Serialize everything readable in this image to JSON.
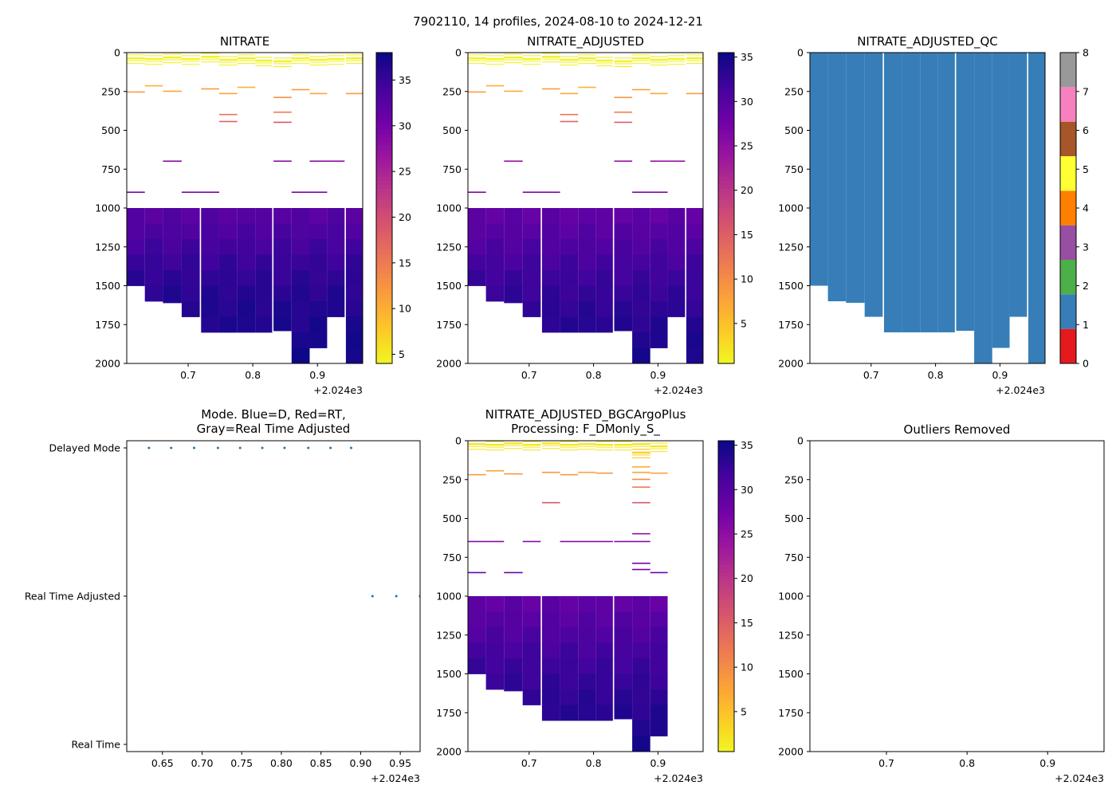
{
  "figure_title": "7902110, 14 profiles, 2024-08-10 to 2024-12-21",
  "colors": {
    "bin_blue": "#377eb8",
    "mode_dot": "#1f77b4",
    "plasma": [
      "#f0f921",
      "#fdca26",
      "#fb9f3a",
      "#ed7953",
      "#d8576b",
      "#bd3786",
      "#9c179e",
      "#7201a8",
      "#46039f",
      "#0d0887"
    ],
    "qc_classes": [
      "#e41a1c",
      "#377eb8",
      "#4daf4a",
      "#984ea3",
      "#ff7f00",
      "#ffff33",
      "#a65628",
      "#f781bf",
      "#999999"
    ]
  },
  "chart_data": [
    {
      "id": "nitrate",
      "type": "heatmap",
      "title": "NITRATE",
      "x_offset_label": "+2.024e3",
      "xlim": [
        0.605,
        0.97
      ],
      "ylim": [
        2000,
        0
      ],
      "xticks": [
        "0.7",
        "0.8",
        "0.9"
      ],
      "yticks": [
        "0",
        "250",
        "500",
        "750",
        "1000",
        "1250",
        "1500",
        "1750",
        "2000"
      ],
      "colorbar": {
        "range": [
          4,
          38
        ],
        "ticks": [
          "5",
          "10",
          "15",
          "20",
          "25",
          "30",
          "35"
        ]
      },
      "profiles": [
        {
          "x0": 0.605,
          "x1": 0.633,
          "max_depth": 1500
        },
        {
          "x0": 0.633,
          "x1": 0.661,
          "max_depth": 1600
        },
        {
          "x0": 0.661,
          "x1": 0.69,
          "max_depth": 1610
        },
        {
          "x0": 0.69,
          "x1": 0.718,
          "max_depth": 1700
        },
        {
          "x0": 0.72,
          "x1": 0.748,
          "max_depth": 1800
        },
        {
          "x0": 0.748,
          "x1": 0.776,
          "max_depth": 1800
        },
        {
          "x0": 0.776,
          "x1": 0.804,
          "max_depth": 1800
        },
        {
          "x0": 0.804,
          "x1": 0.83,
          "max_depth": 1800
        },
        {
          "x0": 0.832,
          "x1": 0.86,
          "max_depth": 1790
        },
        {
          "x0": 0.86,
          "x1": 0.888,
          "max_depth": 2000
        },
        {
          "x0": 0.888,
          "x1": 0.915,
          "max_depth": 1900
        },
        {
          "x0": 0.915,
          "x1": 0.942,
          "max_depth": 1700
        },
        {
          "x0": 0.944,
          "x1": 0.97,
          "max_depth": 2000
        }
      ],
      "deep_values": {
        "depths": [
          1000,
          1200,
          1400,
          1600,
          1800,
          2000
        ],
        "values": [
          32.5,
          34,
          35.5,
          36.5,
          37,
          37.5
        ]
      },
      "shallow_segments": [
        {
          "x0": 0.605,
          "x1": 0.633,
          "d": 40,
          "v": 4.5
        },
        {
          "x0": 0.633,
          "x1": 0.661,
          "d": 45,
          "v": 4.5
        },
        {
          "x0": 0.661,
          "x1": 0.69,
          "d": 35,
          "v": 4.8
        },
        {
          "x0": 0.69,
          "x1": 0.718,
          "d": 45,
          "v": 4.5
        },
        {
          "x0": 0.72,
          "x1": 0.748,
          "d": 30,
          "v": 4.6
        },
        {
          "x0": 0.748,
          "x1": 0.776,
          "d": 50,
          "v": 4.5
        },
        {
          "x0": 0.776,
          "x1": 0.804,
          "d": 40,
          "v": 4.7
        },
        {
          "x0": 0.804,
          "x1": 0.83,
          "d": 55,
          "v": 4.6
        },
        {
          "x0": 0.832,
          "x1": 0.86,
          "d": 60,
          "v": 4.8
        },
        {
          "x0": 0.86,
          "x1": 0.888,
          "d": 40,
          "v": 4.5
        },
        {
          "x0": 0.888,
          "x1": 0.915,
          "d": 50,
          "v": 4.6
        },
        {
          "x0": 0.915,
          "x1": 0.942,
          "d": 45,
          "v": 4.5
        },
        {
          "x0": 0.944,
          "x1": 0.97,
          "d": 40,
          "v": 4.6
        },
        {
          "x0": 0.605,
          "x1": 0.633,
          "d": 255,
          "v": 12
        },
        {
          "x0": 0.661,
          "x1": 0.69,
          "d": 250,
          "v": 11
        },
        {
          "x0": 0.72,
          "x1": 0.748,
          "d": 235,
          "v": 12
        },
        {
          "x0": 0.748,
          "x1": 0.776,
          "d": 265,
          "v": 11
        },
        {
          "x0": 0.776,
          "x1": 0.804,
          "d": 225,
          "v": 10
        },
        {
          "x0": 0.832,
          "x1": 0.86,
          "d": 290,
          "v": 13
        },
        {
          "x0": 0.86,
          "x1": 0.888,
          "d": 240,
          "v": 12
        },
        {
          "x0": 0.888,
          "x1": 0.915,
          "d": 265,
          "v": 11
        },
        {
          "x0": 0.944,
          "x1": 0.97,
          "d": 265,
          "v": 12
        },
        {
          "x0": 0.633,
          "x1": 0.661,
          "d": 215,
          "v": 10
        },
        {
          "x0": 0.832,
          "x1": 0.86,
          "d": 385,
          "v": 15
        },
        {
          "x0": 0.748,
          "x1": 0.776,
          "d": 400,
          "v": 16
        },
        {
          "x0": 0.748,
          "x1": 0.776,
          "d": 445,
          "v": 18
        },
        {
          "x0": 0.832,
          "x1": 0.86,
          "d": 450,
          "v": 19
        },
        {
          "x0": 0.661,
          "x1": 0.69,
          "d": 700,
          "v": 28
        },
        {
          "x0": 0.832,
          "x1": 0.86,
          "d": 700,
          "v": 28
        },
        {
          "x0": 0.888,
          "x1": 0.942,
          "d": 700,
          "v": 28
        },
        {
          "x0": 0.605,
          "x1": 0.633,
          "d": 900,
          "v": 30
        },
        {
          "x0": 0.69,
          "x1": 0.748,
          "d": 900,
          "v": 30
        },
        {
          "x0": 0.86,
          "x1": 0.915,
          "d": 900,
          "v": 30
        }
      ]
    },
    {
      "id": "nitrate_adjusted",
      "type": "heatmap",
      "title": "NITRATE_ADJUSTED",
      "x_offset_label": "+2.024e3",
      "xlim": [
        0.605,
        0.97
      ],
      "ylim": [
        2000,
        0
      ],
      "xticks": [
        "0.7",
        "0.8",
        "0.9"
      ],
      "yticks": [
        "0",
        "250",
        "500",
        "750",
        "1000",
        "1250",
        "1500",
        "1750",
        "2000"
      ],
      "colorbar": {
        "range": [
          0.5,
          35.5
        ],
        "ticks": [
          "5",
          "10",
          "15",
          "20",
          "25",
          "30",
          "35"
        ]
      },
      "same_profiles_as": "nitrate",
      "deep_values": {
        "depths": [
          1000,
          1200,
          1400,
          1600,
          1800,
          2000
        ],
        "values": [
          29,
          30.5,
          32,
          33,
          34,
          34.5
        ]
      }
    },
    {
      "id": "nitrate_adjusted_qc",
      "type": "heatmap",
      "title": "NITRATE_ADJUSTED_QC",
      "x_offset_label": "+2.024e3",
      "xlim": [
        0.605,
        0.97
      ],
      "ylim": [
        2000,
        0
      ],
      "xticks": [
        "0.7",
        "0.8",
        "0.9"
      ],
      "yticks": [
        "0",
        "250",
        "500",
        "750",
        "1000",
        "1250",
        "1500",
        "1750",
        "2000"
      ],
      "colorbar": {
        "range": [
          0,
          8
        ],
        "ticks": [
          "0",
          "1",
          "2",
          "3",
          "4",
          "5",
          "6",
          "7",
          "8"
        ]
      },
      "qc_value": 1
    },
    {
      "id": "mode",
      "type": "scatter",
      "title_lines": [
        "Mode. Blue=D, Red=RT,",
        "Gray=Real Time Adjusted"
      ],
      "x_offset_label": "+2.024e3",
      "xlim": [
        0.605,
        0.975
      ],
      "xticks": [
        "0.65",
        "0.70",
        "0.75",
        "0.80",
        "0.85",
        "0.90",
        "0.95"
      ],
      "yticks": [
        "Delayed Mode",
        "Real Time Adjusted",
        "Real Time"
      ],
      "points": [
        {
          "x": 0.633,
          "mode": 2
        },
        {
          "x": 0.661,
          "mode": 2
        },
        {
          "x": 0.69,
          "mode": 2
        },
        {
          "x": 0.72,
          "mode": 2
        },
        {
          "x": 0.748,
          "mode": 2
        },
        {
          "x": 0.776,
          "mode": 2
        },
        {
          "x": 0.804,
          "mode": 2
        },
        {
          "x": 0.834,
          "mode": 2
        },
        {
          "x": 0.862,
          "mode": 2
        },
        {
          "x": 0.888,
          "mode": 2
        },
        {
          "x": 0.915,
          "mode": 1
        },
        {
          "x": 0.945,
          "mode": 1
        },
        {
          "x": 0.975,
          "mode": 1
        }
      ]
    },
    {
      "id": "bgcargoplus",
      "type": "heatmap",
      "title_lines": [
        "NITRATE_ADJUSTED_BGCArgoPlus",
        "Processing: F_DMonly_S_"
      ],
      "x_offset_label": "+2.024e3",
      "xlim": [
        0.605,
        0.97
      ],
      "ylim": [
        2000,
        0
      ],
      "xticks": [
        "0.7",
        "0.8",
        "0.9"
      ],
      "yticks": [
        "0",
        "250",
        "500",
        "750",
        "1000",
        "1250",
        "1500",
        "1750",
        "2000"
      ],
      "colorbar": {
        "range": [
          0.5,
          35.5
        ],
        "ticks": [
          "5",
          "10",
          "15",
          "20",
          "25",
          "30",
          "35"
        ]
      },
      "profiles": [
        {
          "x0": 0.605,
          "x1": 0.633,
          "max_depth": 1500
        },
        {
          "x0": 0.633,
          "x1": 0.661,
          "max_depth": 1600
        },
        {
          "x0": 0.661,
          "x1": 0.69,
          "max_depth": 1610
        },
        {
          "x0": 0.69,
          "x1": 0.718,
          "max_depth": 1700
        },
        {
          "x0": 0.72,
          "x1": 0.748,
          "max_depth": 1800
        },
        {
          "x0": 0.748,
          "x1": 0.776,
          "max_depth": 1800
        },
        {
          "x0": 0.776,
          "x1": 0.804,
          "max_depth": 1800
        },
        {
          "x0": 0.804,
          "x1": 0.83,
          "max_depth": 1800
        },
        {
          "x0": 0.832,
          "x1": 0.86,
          "max_depth": 1790
        },
        {
          "x0": 0.86,
          "x1": 0.888,
          "max_depth": 2000
        },
        {
          "x0": 0.888,
          "x1": 0.915,
          "max_depth": 1900
        }
      ],
      "deep_values": {
        "depths": [
          1000,
          1200,
          1400,
          1600,
          1800,
          2000
        ],
        "values": [
          29,
          30.5,
          32,
          33,
          34,
          34.5
        ]
      },
      "shallow_segments": [
        {
          "x0": 0.605,
          "x1": 0.633,
          "d": 25,
          "v": 2
        },
        {
          "x0": 0.633,
          "x1": 0.661,
          "d": 30,
          "v": 2
        },
        {
          "x0": 0.661,
          "x1": 0.69,
          "d": 20,
          "v": 2
        },
        {
          "x0": 0.69,
          "x1": 0.718,
          "d": 30,
          "v": 2
        },
        {
          "x0": 0.72,
          "x1": 0.748,
          "d": 20,
          "v": 2
        },
        {
          "x0": 0.748,
          "x1": 0.776,
          "d": 30,
          "v": 2
        },
        {
          "x0": 0.776,
          "x1": 0.804,
          "d": 25,
          "v": 2
        },
        {
          "x0": 0.804,
          "x1": 0.83,
          "d": 30,
          "v": 2
        },
        {
          "x0": 0.832,
          "x1": 0.86,
          "d": 30,
          "v": 2
        },
        {
          "x0": 0.86,
          "x1": 0.888,
          "d": 25,
          "v": 2
        },
        {
          "x0": 0.888,
          "x1": 0.915,
          "d": 40,
          "v": 2
        },
        {
          "x0": 0.605,
          "x1": 0.633,
          "d": 220,
          "v": 9
        },
        {
          "x0": 0.633,
          "x1": 0.661,
          "d": 195,
          "v": 8
        },
        {
          "x0": 0.661,
          "x1": 0.69,
          "d": 215,
          "v": 9
        },
        {
          "x0": 0.72,
          "x1": 0.748,
          "d": 205,
          "v": 9
        },
        {
          "x0": 0.748,
          "x1": 0.776,
          "d": 220,
          "v": 9
        },
        {
          "x0": 0.776,
          "x1": 0.804,
          "d": 205,
          "v": 8
        },
        {
          "x0": 0.804,
          "x1": 0.83,
          "d": 210,
          "v": 9
        },
        {
          "x0": 0.86,
          "x1": 0.888,
          "d": 205,
          "v": 8
        },
        {
          "x0": 0.888,
          "x1": 0.915,
          "d": 210,
          "v": 8
        },
        {
          "x0": 0.86,
          "x1": 0.888,
          "d": 80,
          "v": 4
        },
        {
          "x0": 0.86,
          "x1": 0.888,
          "d": 170,
          "v": 7
        },
        {
          "x0": 0.86,
          "x1": 0.888,
          "d": 250,
          "v": 10
        },
        {
          "x0": 0.86,
          "x1": 0.888,
          "d": 300,
          "v": 12
        },
        {
          "x0": 0.72,
          "x1": 0.748,
          "d": 400,
          "v": 16
        },
        {
          "x0": 0.86,
          "x1": 0.888,
          "d": 400,
          "v": 16
        },
        {
          "x0": 0.86,
          "x1": 0.888,
          "d": 600,
          "v": 25
        },
        {
          "x0": 0.605,
          "x1": 0.661,
          "d": 650,
          "v": 26
        },
        {
          "x0": 0.69,
          "x1": 0.718,
          "d": 650,
          "v": 26
        },
        {
          "x0": 0.748,
          "x1": 0.83,
          "d": 650,
          "v": 26
        },
        {
          "x0": 0.832,
          "x1": 0.888,
          "d": 650,
          "v": 26
        },
        {
          "x0": 0.86,
          "x1": 0.888,
          "d": 790,
          "v": 28
        },
        {
          "x0": 0.86,
          "x1": 0.888,
          "d": 830,
          "v": 28
        },
        {
          "x0": 0.605,
          "x1": 0.633,
          "d": 850,
          "v": 28
        },
        {
          "x0": 0.661,
          "x1": 0.69,
          "d": 850,
          "v": 28
        },
        {
          "x0": 0.888,
          "x1": 0.915,
          "d": 850,
          "v": 28
        }
      ]
    },
    {
      "id": "outliers",
      "type": "scatter",
      "title": "Outliers Removed",
      "x_offset_label": "+2.024e3",
      "xlim": [
        0.605,
        0.97
      ],
      "ylim": [
        2000,
        0
      ],
      "xticks": [
        "0.7",
        "0.8",
        "0.9"
      ],
      "yticks": [
        "0",
        "250",
        "500",
        "750",
        "1000",
        "1250",
        "1500",
        "1750",
        "2000"
      ],
      "points": []
    }
  ]
}
